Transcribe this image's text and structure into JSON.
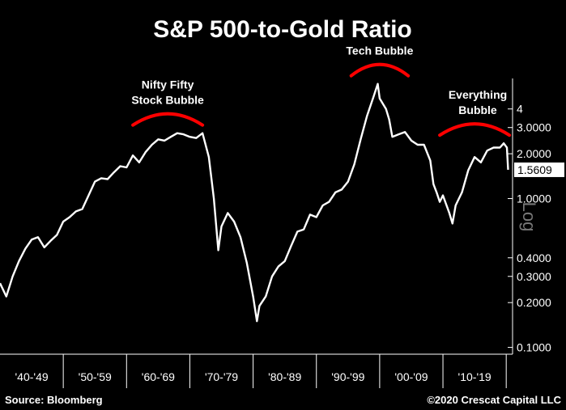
{
  "chart_data": {
    "type": "line",
    "title": "S&P 500-to-Gold Ratio",
    "yscale": "log",
    "ylim": [
      0.09,
      7
    ],
    "xlim": [
      1940,
      2021
    ],
    "grid": false,
    "y_ticks": [
      {
        "value": 4,
        "label": "4"
      },
      {
        "value": 3,
        "label": "3.0000"
      },
      {
        "value": 2,
        "label": "2.0000"
      },
      {
        "value": 1,
        "label": "1.0000"
      },
      {
        "value": 0.4,
        "label": "0.4000"
      },
      {
        "value": 0.3,
        "label": "0.3000"
      },
      {
        "value": 0.2,
        "label": "0.2000"
      },
      {
        "value": 0.1,
        "label": "0.1000"
      }
    ],
    "y_axis_label": "Log",
    "last_value": {
      "value": 1.5609,
      "label": "1.5609"
    },
    "x_categories": [
      "'40-'49",
      "'50-'59",
      "'60-'69",
      "'70-'79",
      "'80-'89",
      "'90-'99",
      "'00-'09",
      "'10-'19"
    ],
    "series": [
      {
        "color": "#ffffff",
        "x": [
          1940,
          1941,
          1942,
          1943,
          1944,
          1945,
          1946,
          1947,
          1948,
          1949,
          1950,
          1951,
          1952,
          1953,
          1954,
          1955,
          1956,
          1957,
          1958,
          1959,
          1960,
          1961,
          1962,
          1963,
          1964,
          1965,
          1966,
          1967,
          1968,
          1969,
          1970,
          1971,
          1972,
          1973,
          1973.8,
          1974.5,
          1975,
          1976,
          1977,
          1978,
          1979,
          1980,
          1980.6,
          1981,
          1982,
          1983,
          1984,
          1985,
          1986,
          1987,
          1988,
          1989,
          1990,
          1991,
          1992,
          1993,
          1994,
          1995,
          1996,
          1997,
          1998,
          1999,
          1999.7,
          2000,
          2001,
          2001.5,
          2002,
          2003,
          2004,
          2005,
          2006,
          2007,
          2008,
          2008.5,
          2009,
          2009.5,
          2010,
          2011,
          2011.5,
          2012,
          2013,
          2014,
          2015,
          2016,
          2017,
          2018,
          2019,
          2019.6,
          2020.1,
          2020.3
        ],
        "values": [
          0.27,
          0.22,
          0.3,
          0.38,
          0.46,
          0.53,
          0.55,
          0.47,
          0.52,
          0.57,
          0.7,
          0.75,
          0.82,
          0.85,
          1.05,
          1.3,
          1.37,
          1.35,
          1.5,
          1.65,
          1.62,
          1.95,
          1.75,
          2.05,
          2.3,
          2.5,
          2.45,
          2.6,
          2.75,
          2.7,
          2.6,
          2.55,
          2.75,
          1.9,
          1.0,
          0.45,
          0.65,
          0.8,
          0.7,
          0.55,
          0.37,
          0.22,
          0.15,
          0.19,
          0.22,
          0.3,
          0.35,
          0.38,
          0.48,
          0.6,
          0.62,
          0.78,
          0.75,
          0.9,
          0.95,
          1.1,
          1.15,
          1.3,
          1.7,
          2.5,
          3.6,
          4.8,
          5.9,
          4.7,
          4.0,
          3.4,
          2.6,
          2.7,
          2.8,
          2.45,
          2.3,
          2.3,
          1.8,
          1.25,
          1.1,
          0.95,
          1.05,
          0.8,
          0.68,
          0.9,
          1.1,
          1.55,
          1.9,
          1.75,
          2.1,
          2.2,
          2.2,
          2.35,
          2.2,
          1.5609
        ]
      }
    ],
    "annotations": [
      {
        "lines": [
          "Nifty Fifty",
          "Stock Bubble"
        ],
        "x": 1966.5
      },
      {
        "lines": [
          "Tech Bubble"
        ],
        "x": 2000
      },
      {
        "lines": [
          "Everything",
          "Bubble"
        ],
        "x": 2015.5
      }
    ],
    "bubble_arcs": [
      {
        "x_start": 1961,
        "x_end": 1972,
        "color": "#ff0000"
      },
      {
        "x_start": 1995.5,
        "x_end": 2004.5,
        "color": "#ff0000"
      },
      {
        "x_start": 2009.5,
        "x_end": 2020.5,
        "color": "#ff0000"
      }
    ],
    "footer_left": "Source: Bloomberg",
    "footer_right": "©2020 Crescat Capital LLC"
  }
}
